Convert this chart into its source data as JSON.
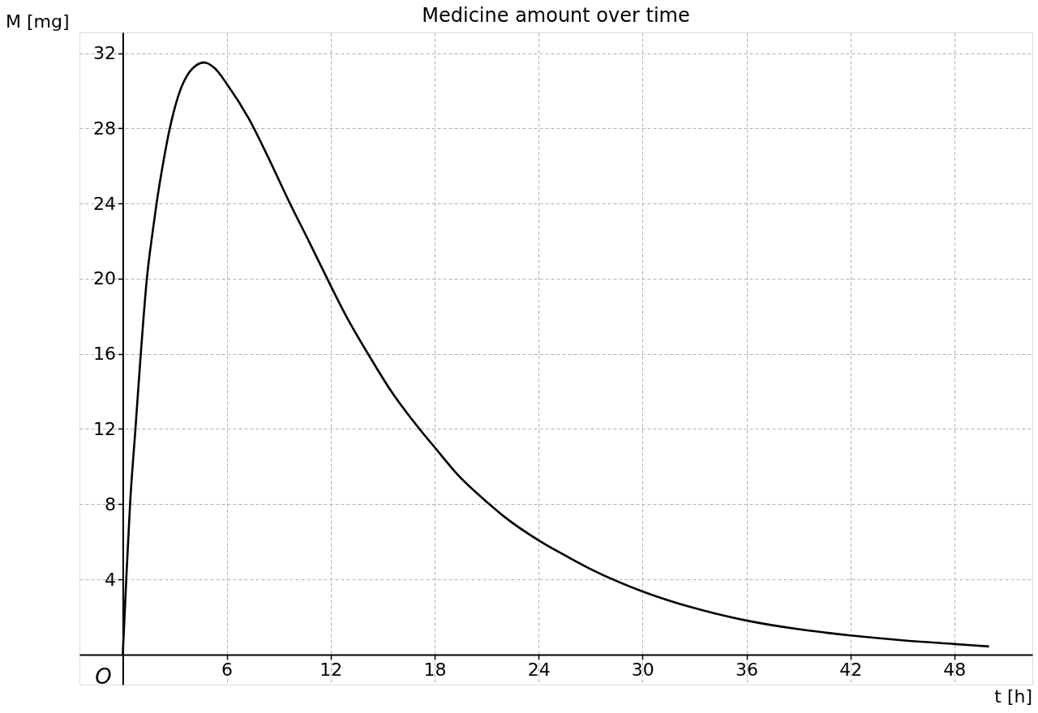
{
  "chart_data": {
    "type": "line",
    "title": "Medicine amount over time",
    "xlabel": "t [h]",
    "ylabel": "M [mg]",
    "x": [
      0,
      0.2,
      0.42,
      0.73,
      1.04,
      1.39,
      1.74,
      1.95,
      2.34,
      2.68,
      3.23,
      3.85,
      4.24,
      4.68,
      5.3,
      6.05,
      7.28,
      8.37,
      9.65,
      10.79,
      11.8,
      12.9,
      14.22,
      15.5,
      17.26,
      18.0,
      19.3,
      21.16,
      22.0,
      24.0,
      25.68,
      27.0,
      30.0,
      33.0,
      36.0,
      39.0,
      42.0,
      45.0,
      48.0,
      50.0
    ],
    "series": [
      {
        "color": "#000000",
        "values": [
          0,
          4,
          8,
          12,
          16,
          20,
          22.6,
          24,
          26.2,
          27.85,
          29.8,
          31.0,
          31.35,
          31.5,
          31.2,
          30.3,
          28.5,
          26.5,
          24.0,
          21.9,
          20.0,
          18.0,
          15.9,
          14.0,
          11.85,
          11.03,
          9.6,
          8.0,
          7.35,
          6.08,
          5.2,
          4.55,
          3.36,
          2.47,
          1.81,
          1.35,
          1.02,
          0.76,
          0.56,
          0.43
        ]
      }
    ],
    "xlim": [
      -2.5,
      52.5
    ],
    "ylim": [
      -1.6,
      33.1
    ],
    "xticks": [
      6,
      12,
      18,
      24,
      30,
      36,
      42,
      48
    ],
    "yticks": [
      4,
      8,
      12,
      16,
      20,
      24,
      28,
      32
    ],
    "grid": true,
    "line_style": "solid",
    "annotations": [
      "O"
    ]
  }
}
